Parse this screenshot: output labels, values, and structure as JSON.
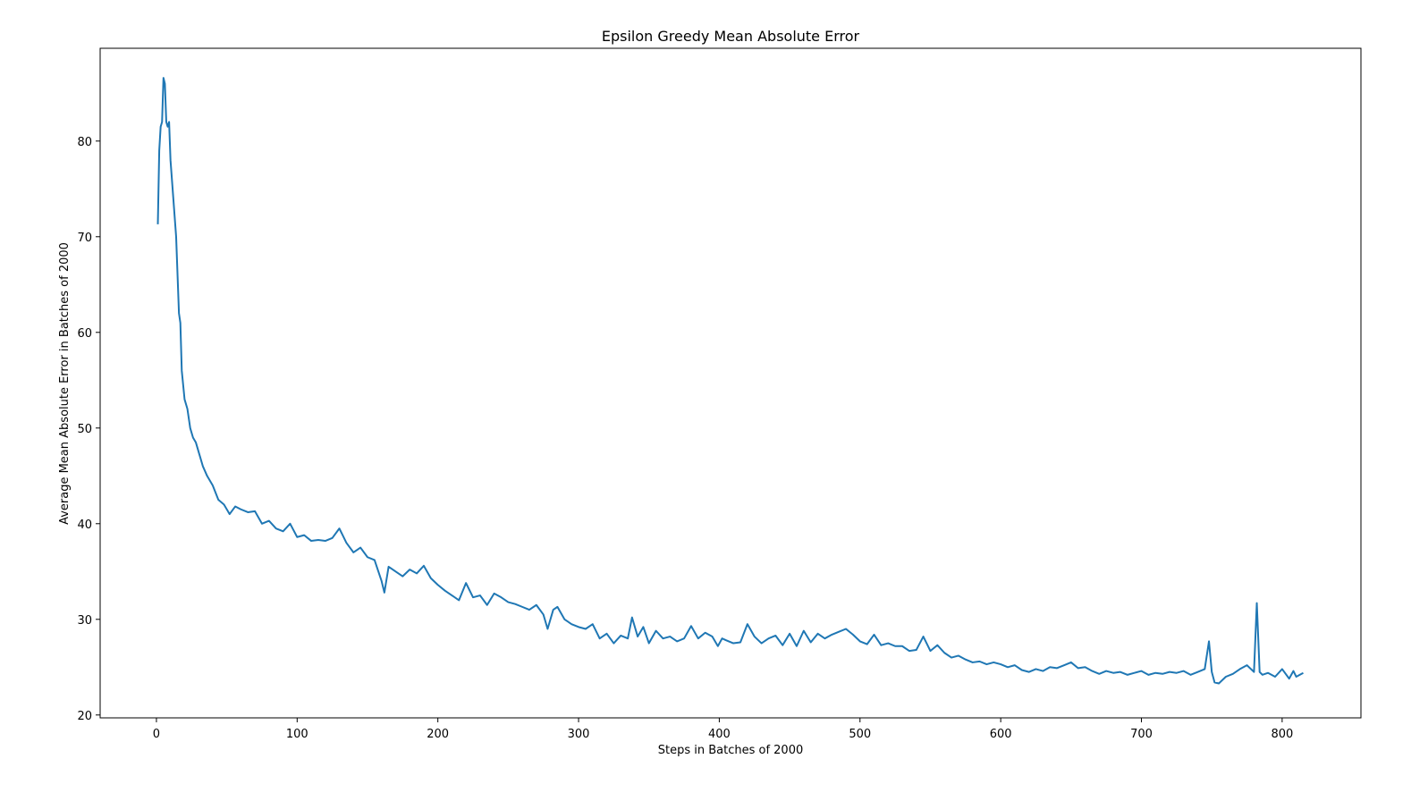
{
  "chart_data": {
    "type": "line",
    "title": "Epsilon Greedy Mean Absolute Error",
    "x_label": "Steps in Batches of 2000",
    "y_label": "Average Mean Absolute Error in Batches of 2000",
    "xlim": [
      -40,
      856
    ],
    "ylim": [
      19.7,
      89.7
    ],
    "xticks": [
      0,
      100,
      200,
      300,
      400,
      500,
      600,
      700,
      800
    ],
    "yticks": [
      20,
      30,
      40,
      50,
      60,
      70,
      80
    ],
    "series": [
      {
        "color": "#1f77b4",
        "x": [
          1,
          2,
          3,
          4,
          5,
          6,
          7,
          8,
          9,
          10,
          12,
          14,
          16,
          17,
          18,
          20,
          22,
          24,
          26,
          28,
          30,
          33,
          36,
          40,
          44,
          48,
          52,
          56,
          60,
          65,
          70,
          75,
          80,
          85,
          90,
          95,
          100,
          105,
          110,
          115,
          120,
          125,
          130,
          135,
          140,
          145,
          150,
          155,
          160,
          162,
          165,
          170,
          175,
          180,
          185,
          190,
          195,
          200,
          205,
          210,
          215,
          220,
          225,
          230,
          235,
          240,
          245,
          250,
          255,
          260,
          265,
          270,
          275,
          278,
          282,
          285,
          290,
          295,
          300,
          305,
          310,
          315,
          320,
          325,
          330,
          335,
          338,
          342,
          346,
          350,
          355,
          360,
          365,
          370,
          375,
          380,
          385,
          390,
          395,
          399,
          402,
          405,
          410,
          415,
          420,
          425,
          430,
          435,
          440,
          445,
          450,
          455,
          460,
          465,
          470,
          475,
          480,
          485,
          490,
          495,
          500,
          505,
          510,
          515,
          520,
          525,
          530,
          535,
          540,
          545,
          550,
          555,
          560,
          565,
          570,
          575,
          580,
          585,
          590,
          595,
          600,
          605,
          610,
          615,
          620,
          625,
          630,
          635,
          640,
          645,
          650,
          655,
          660,
          665,
          670,
          675,
          680,
          685,
          690,
          695,
          700,
          705,
          710,
          715,
          720,
          725,
          730,
          735,
          740,
          745,
          748,
          750,
          752,
          755,
          760,
          765,
          770,
          775,
          780,
          782,
          784,
          786,
          790,
          795,
          800,
          805,
          808,
          810,
          815
        ],
        "values": [
          71.3,
          79,
          81.5,
          82,
          86.6,
          86,
          82,
          81.5,
          82,
          78,
          74,
          70,
          62,
          61,
          56,
          53,
          52,
          50,
          49,
          48.5,
          47.5,
          46,
          45,
          44,
          42.5,
          42,
          41,
          41.8,
          41.5,
          41.2,
          41.3,
          40,
          40.3,
          39.5,
          39.2,
          40,
          38.6,
          38.8,
          38.2,
          38.3,
          38.2,
          38.5,
          39.5,
          38,
          37,
          37.5,
          36.5,
          36.2,
          34,
          32.8,
          35.5,
          35,
          34.5,
          35.2,
          34.8,
          35.6,
          34.3,
          33.6,
          33,
          32.5,
          32,
          33.8,
          32.3,
          32.5,
          31.5,
          32.7,
          32.3,
          31.8,
          31.6,
          31.3,
          31,
          31.5,
          30.5,
          29,
          31,
          31.3,
          30,
          29.5,
          29.2,
          29,
          29.5,
          28,
          28.5,
          27.5,
          28.3,
          28,
          30.2,
          28.2,
          29.2,
          27.5,
          28.8,
          28,
          28.2,
          27.7,
          28,
          29.3,
          28,
          28.6,
          28.2,
          27.2,
          28,
          27.8,
          27.5,
          27.6,
          29.5,
          28.2,
          27.5,
          28,
          28.3,
          27.3,
          28.5,
          27.2,
          28.8,
          27.6,
          28.5,
          28,
          28.4,
          28.7,
          29,
          28.4,
          27.7,
          27.4,
          28.4,
          27.3,
          27.5,
          27.2,
          27.2,
          26.7,
          26.8,
          28.2,
          26.7,
          27.3,
          26.5,
          26,
          26.2,
          25.8,
          25.5,
          25.6,
          25.3,
          25.5,
          25.3,
          25,
          25.2,
          24.7,
          24.5,
          24.8,
          24.6,
          25,
          24.9,
          25.2,
          25.5,
          24.9,
          25,
          24.6,
          24.3,
          24.6,
          24.4,
          24.5,
          24.2,
          24.4,
          24.6,
          24.2,
          24.4,
          24.3,
          24.5,
          24.4,
          24.6,
          24.2,
          24.5,
          24.8,
          27.7,
          24.5,
          23.4,
          23.3,
          24,
          24.3,
          24.8,
          25.2,
          24.5,
          31.7,
          24.5,
          24.2,
          24.4,
          24,
          24.8,
          23.8,
          24.6,
          24,
          24.4
        ]
      }
    ]
  }
}
